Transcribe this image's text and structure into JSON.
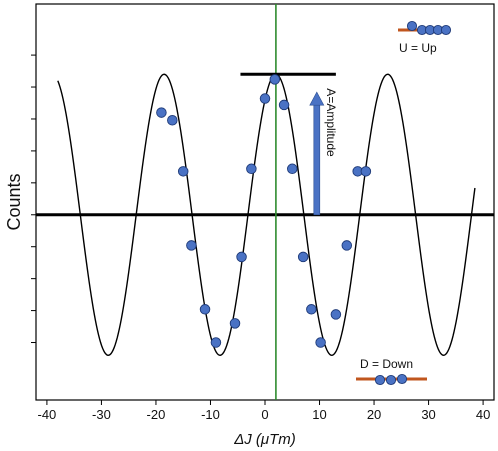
{
  "chart_data": {
    "type": "scatter",
    "xlabel": "ΔJ (μTm)",
    "ylabel": "Counts",
    "xlim": [
      -42,
      42
    ],
    "ylim": [
      -1.45,
      1.65
    ],
    "x_ticks": [
      -40,
      -30,
      -20,
      -10,
      0,
      10,
      20,
      30,
      40
    ],
    "grid": false,
    "center_line_x": 2,
    "baseline_y": 0,
    "fit_curve": {
      "form": "A*cos(2*pi*(x - x0)/period)",
      "amplitude": 1.1,
      "x0": 2,
      "period": 20.5,
      "x_range": [
        -38,
        38.5
      ]
    },
    "points": [
      {
        "x": -19,
        "y": 0.8
      },
      {
        "x": -17,
        "y": 0.74
      },
      {
        "x": -15,
        "y": 0.34
      },
      {
        "x": -13.5,
        "y": -0.24
      },
      {
        "x": -11,
        "y": -0.74
      },
      {
        "x": -9,
        "y": -1.0
      },
      {
        "x": -5.5,
        "y": -0.85
      },
      {
        "x": -4.3,
        "y": -0.33
      },
      {
        "x": -2.5,
        "y": 0.36
      },
      {
        "x": 0,
        "y": 0.91
      },
      {
        "x": 1.8,
        "y": 1.06
      },
      {
        "x": 3.5,
        "y": 0.86
      },
      {
        "x": 5,
        "y": 0.36
      },
      {
        "x": 7,
        "y": -0.33
      },
      {
        "x": 8.5,
        "y": -0.74
      },
      {
        "x": 10.2,
        "y": -1.0
      },
      {
        "x": 13,
        "y": -0.78
      },
      {
        "x": 15,
        "y": -0.24
      },
      {
        "x": 17,
        "y": 0.34
      },
      {
        "x": 18.5,
        "y": 0.34
      }
    ],
    "max_bar": {
      "x_from": -4.5,
      "x_to": 13,
      "y": 1.1
    },
    "annotations": {
      "amplitude": "A=Amplitude",
      "up": "U = Up",
      "down": "D = Down"
    }
  },
  "colors": {
    "point_fill": "#4a72c4",
    "point_stroke": "#1e3a78",
    "curve": "#000000",
    "center_line": "#2e8b2e",
    "arrow": "#4a72c4",
    "rod": "#c0561e"
  }
}
